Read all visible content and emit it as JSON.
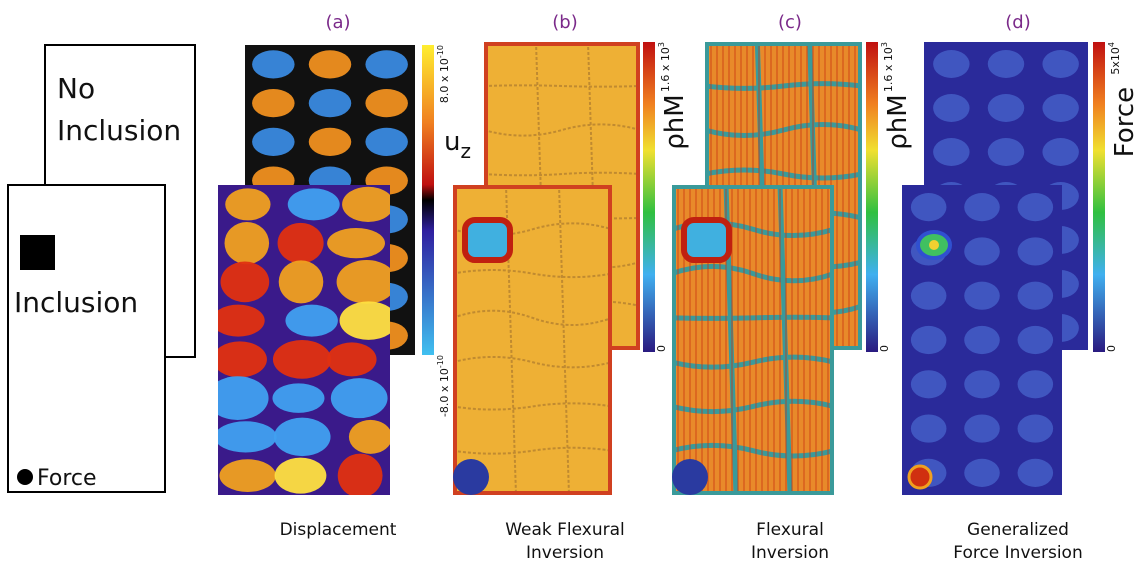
{
  "legend": {
    "no_inclusion": [
      "No",
      "Inclusion"
    ],
    "inclusion": "Inclusion",
    "force": "Force"
  },
  "panels": [
    {
      "label": "(a)",
      "caption": [
        "Displacement"
      ],
      "colorbar": {
        "quantity": "u",
        "subscript": "z",
        "max": {
          "mantissa": "8.0 x 10",
          "exponent": "-10"
        },
        "min": {
          "mantissa": "-8.0 x 10",
          "exponent": "-10"
        }
      }
    },
    {
      "label": "(b)",
      "caption": [
        "Weak Flexural",
        "Inversion"
      ],
      "colorbar": {
        "quantity": "ρhM",
        "max": {
          "mantissa": "1.6 x 10",
          "exponent": "3"
        },
        "min": "0"
      }
    },
    {
      "label": "(c)",
      "caption": [
        "Flexural",
        "Inversion"
      ],
      "colorbar": {
        "quantity": "ρhM",
        "max": {
          "mantissa": "1.6 x 10",
          "exponent": "3"
        },
        "min": "0"
      }
    },
    {
      "label": "(d)",
      "caption": [
        "Generalized",
        "Force Inversion"
      ],
      "colorbar": {
        "quantity": "Force",
        "max": {
          "mantissa": "5x10",
          "exponent": "4"
        },
        "min": "0"
      }
    }
  ]
}
